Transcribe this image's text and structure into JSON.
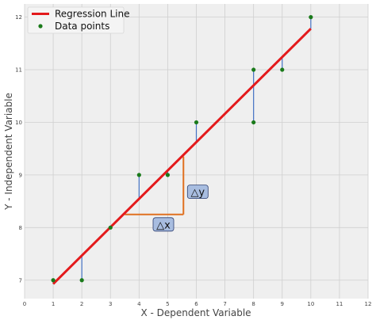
{
  "chart_data": {
    "type": "scatter",
    "xlabel": "X - Dependent Variable",
    "ylabel": "Y - Independent Variable",
    "xlim": [
      0,
      12
    ],
    "ylim": [
      6.65,
      12.25
    ],
    "xticks": [
      0,
      1,
      2,
      3,
      4,
      5,
      6,
      7,
      8,
      9,
      10,
      11,
      12
    ],
    "yticks": [
      7,
      8,
      9,
      10,
      11,
      12
    ],
    "grid": true,
    "legend_position": "top-left",
    "series": [
      {
        "name": "Regression Line",
        "kind": "line",
        "color": "#e31a1c",
        "x": [
          1,
          10
        ],
        "y": [
          6.93,
          11.78
        ]
      },
      {
        "name": "Data points",
        "kind": "scatter",
        "color": "#1a7a1a",
        "x": [
          1,
          2,
          3,
          4,
          5,
          6,
          8,
          8,
          9,
          10
        ],
        "y": [
          7,
          7,
          8,
          9,
          9,
          10,
          11,
          10,
          11,
          12
        ]
      }
    ],
    "residual_color": "#4472c4",
    "annotations": {
      "color": "#e07020",
      "box_fill": "#a8bde0",
      "box_border": "#2c3e70",
      "dx_label": "△x",
      "dy_label": "△y",
      "step": {
        "x1": 3.5,
        "x2": 5.55,
        "y_low": 8.25,
        "y_high": 9.35
      }
    }
  }
}
